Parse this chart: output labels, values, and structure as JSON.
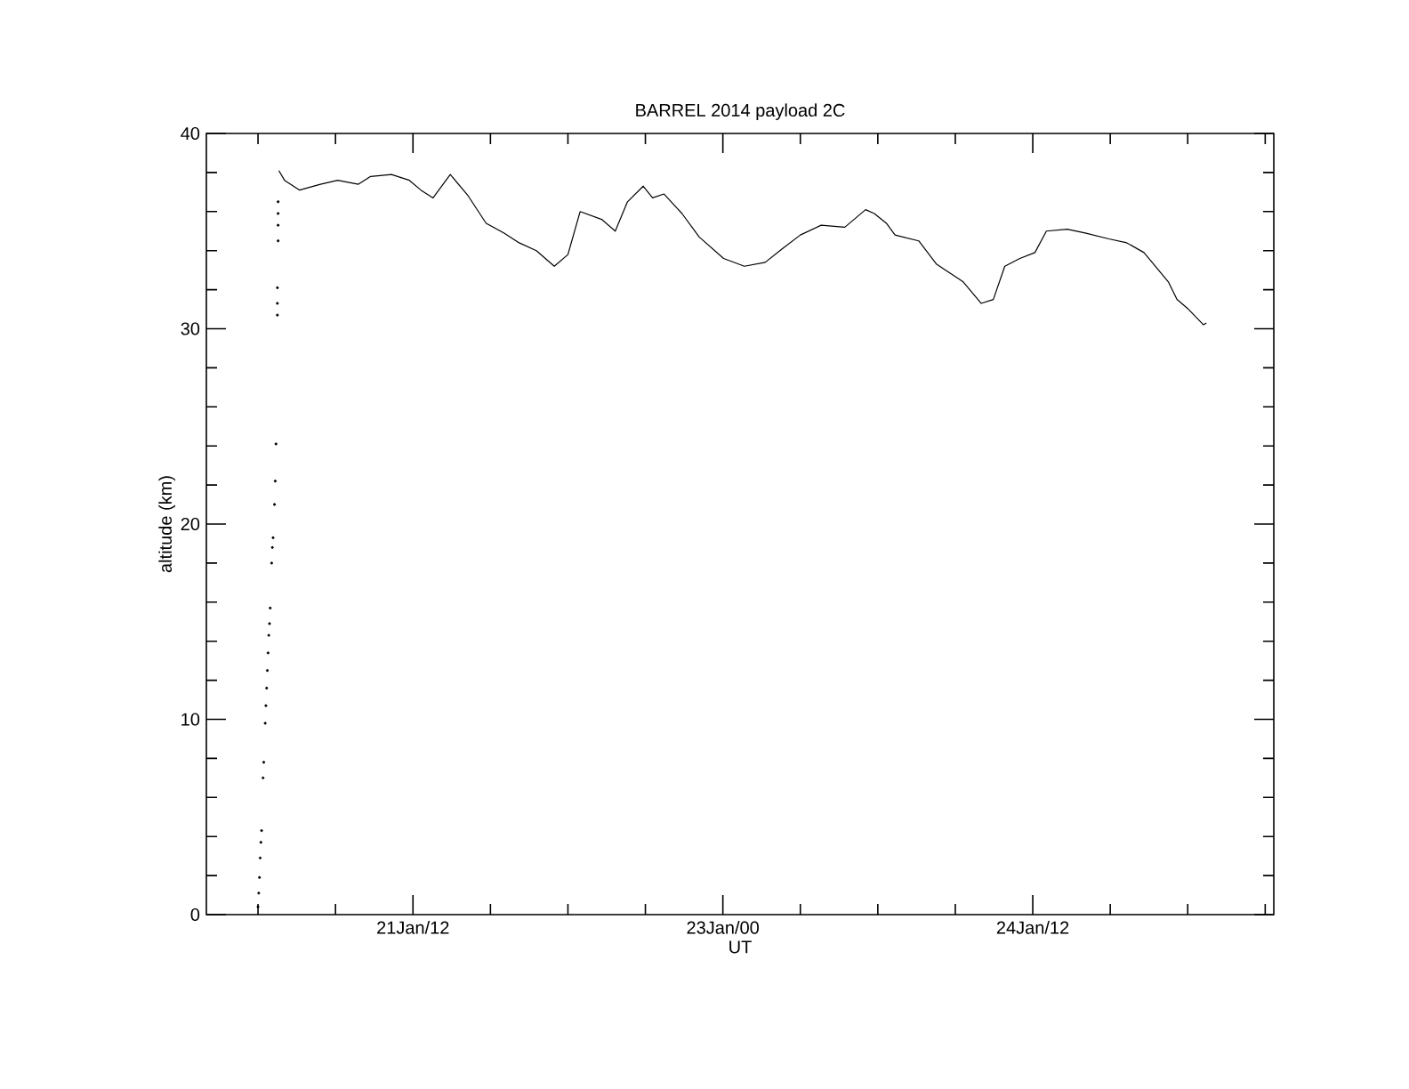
{
  "chart_data": {
    "type": "line",
    "title": "BARREL 2014 payload 2C",
    "xlabel": "UT",
    "ylabel": "altitude (km)",
    "xlim": [
      "2014-01-20T12:00",
      "2014-01-25T16:00"
    ],
    "xticks": [
      {
        "value": "2014-01-20T18:00",
        "label": null
      },
      {
        "value": "2014-01-21T03:00",
        "label": null
      },
      {
        "value": "2014-01-21T12:00",
        "label": "21Jan/12"
      },
      {
        "value": "2014-01-21T21:00",
        "label": null
      },
      {
        "value": "2014-01-22T06:00",
        "label": null
      },
      {
        "value": "2014-01-22T15:00",
        "label": null
      },
      {
        "value": "2014-01-23T00:00",
        "label": "23Jan/00"
      },
      {
        "value": "2014-01-23T09:00",
        "label": null
      },
      {
        "value": "2014-01-23T18:00",
        "label": null
      },
      {
        "value": "2014-01-24T03:00",
        "label": null
      },
      {
        "value": "2014-01-24T12:00",
        "label": "24Jan/12"
      },
      {
        "value": "2014-01-24T21:00",
        "label": null
      },
      {
        "value": "2014-01-25T06:00",
        "label": null
      },
      {
        "value": "2014-01-25T15:00",
        "label": null
      }
    ],
    "ylim": [
      0,
      40
    ],
    "yticks": [
      0,
      {
        "value": 2,
        "label": null
      },
      {
        "value": 4,
        "label": null
      },
      {
        "value": 6,
        "label": null
      },
      {
        "value": 8,
        "label": null
      },
      10,
      {
        "value": 12,
        "label": null
      },
      {
        "value": 14,
        "label": null
      },
      {
        "value": 16,
        "label": null
      },
      {
        "value": 18,
        "label": null
      },
      20,
      {
        "value": 22,
        "label": null
      },
      {
        "value": 24,
        "label": null
      },
      {
        "value": 26,
        "label": null
      },
      {
        "value": 28,
        "label": null
      },
      30,
      {
        "value": 32,
        "label": null
      },
      {
        "value": 34,
        "label": null
      },
      {
        "value": 36,
        "label": null
      },
      {
        "value": 38,
        "label": null
      },
      40
    ],
    "series": [
      {
        "type": "scatter",
        "color": "#000000",
        "marker": "circle",
        "x": [
          "2014-01-20T18:00",
          "2014-01-20T18:05",
          "2014-01-20T18:10",
          "2014-01-20T18:15",
          "2014-01-20T18:20",
          "2014-01-20T18:25",
          "2014-01-20T18:35",
          "2014-01-20T18:40",
          "2014-01-20T18:50",
          "2014-01-20T18:55",
          "2014-01-20T19:00",
          "2014-01-20T19:05",
          "2014-01-20T19:10",
          "2014-01-20T19:15",
          "2014-01-20T19:20",
          "2014-01-20T19:25",
          "2014-01-20T19:35",
          "2014-01-20T19:40",
          "2014-01-20T19:45",
          "2014-01-20T19:55",
          "2014-01-20T20:00",
          "2014-01-20T20:05",
          "2014-01-20T20:15",
          "2014-01-20T20:15",
          "2014-01-20T20:15",
          "2014-01-20T20:20",
          "2014-01-20T20:20",
          "2014-01-20T20:20",
          "2014-01-20T20:20"
        ],
        "values": [
          0.4,
          1.1,
          1.9,
          2.9,
          3.7,
          4.3,
          7.0,
          7.8,
          9.8,
          10.7,
          11.6,
          12.5,
          13.4,
          14.3,
          14.9,
          15.7,
          18.0,
          18.8,
          19.3,
          21.0,
          22.2,
          24.1,
          30.7,
          31.3,
          32.1,
          34.5,
          35.3,
          35.9,
          36.5
        ]
      },
      {
        "color": "#000000",
        "x": [
          "2014-01-20T20:25",
          "2014-01-20T21:05",
          "2014-01-20T22:50",
          "2014-01-21T01:15",
          "2014-01-21T03:15",
          "2014-01-21T05:40",
          "2014-01-21T07:05",
          "2014-01-21T09:30",
          "2014-01-21T11:35",
          "2014-01-21T12:55",
          "2014-01-21T14:20",
          "2014-01-21T16:20",
          "2014-01-21T18:25",
          "2014-01-21T20:30",
          "2014-01-21T22:35",
          "2014-01-22T00:20",
          "2014-01-22T02:20",
          "2014-01-22T04:25",
          "2014-01-22T06:00",
          "2014-01-22T07:25",
          "2014-01-22T09:55",
          "2014-01-22T11:30",
          "2014-01-22T12:55",
          "2014-01-22T14:45",
          "2014-01-22T15:50",
          "2014-01-22T17:10",
          "2014-01-22T19:15",
          "2014-01-22T21:15",
          "2014-01-23T00:05",
          "2014-01-23T02:30",
          "2014-01-23T04:55",
          "2014-01-23T06:55",
          "2014-01-23T09:00",
          "2014-01-23T11:25",
          "2014-01-23T14:10",
          "2014-01-23T16:35",
          "2014-01-23T17:35",
          "2014-01-23T19:00",
          "2014-01-23T20:00",
          "2014-01-23T22:45",
          "2014-01-24T00:50",
          "2014-01-24T03:55",
          "2014-01-24T06:00",
          "2014-01-24T07:25",
          "2014-01-24T08:45",
          "2014-01-24T10:30",
          "2014-01-24T12:15",
          "2014-01-24T13:35",
          "2014-01-24T16:00",
          "2014-01-24T18:05",
          "2014-01-24T20:50",
          "2014-01-24T22:55",
          "2014-01-25T00:55",
          "2014-01-25T03:45",
          "2014-01-25T04:45",
          "2014-01-25T06:05",
          "2014-01-25T07:50",
          "2014-01-25T08:10"
        ],
        "values": [
          38.1,
          37.6,
          37.1,
          37.4,
          37.6,
          37.4,
          37.8,
          37.9,
          37.6,
          37.1,
          36.7,
          37.9,
          36.8,
          35.4,
          34.9,
          34.4,
          34.0,
          33.2,
          33.8,
          36.0,
          35.6,
          35.0,
          36.5,
          37.3,
          36.7,
          36.9,
          35.9,
          34.7,
          33.6,
          33.2,
          33.4,
          34.1,
          34.8,
          35.3,
          35.2,
          36.1,
          35.9,
          35.4,
          34.8,
          34.5,
          33.3,
          32.4,
          31.3,
          31.5,
          33.2,
          33.6,
          33.9,
          35.0,
          35.1,
          34.9,
          34.6,
          34.4,
          33.9,
          32.4,
          31.5,
          31.0,
          30.2,
          30.3
        ]
      }
    ]
  }
}
